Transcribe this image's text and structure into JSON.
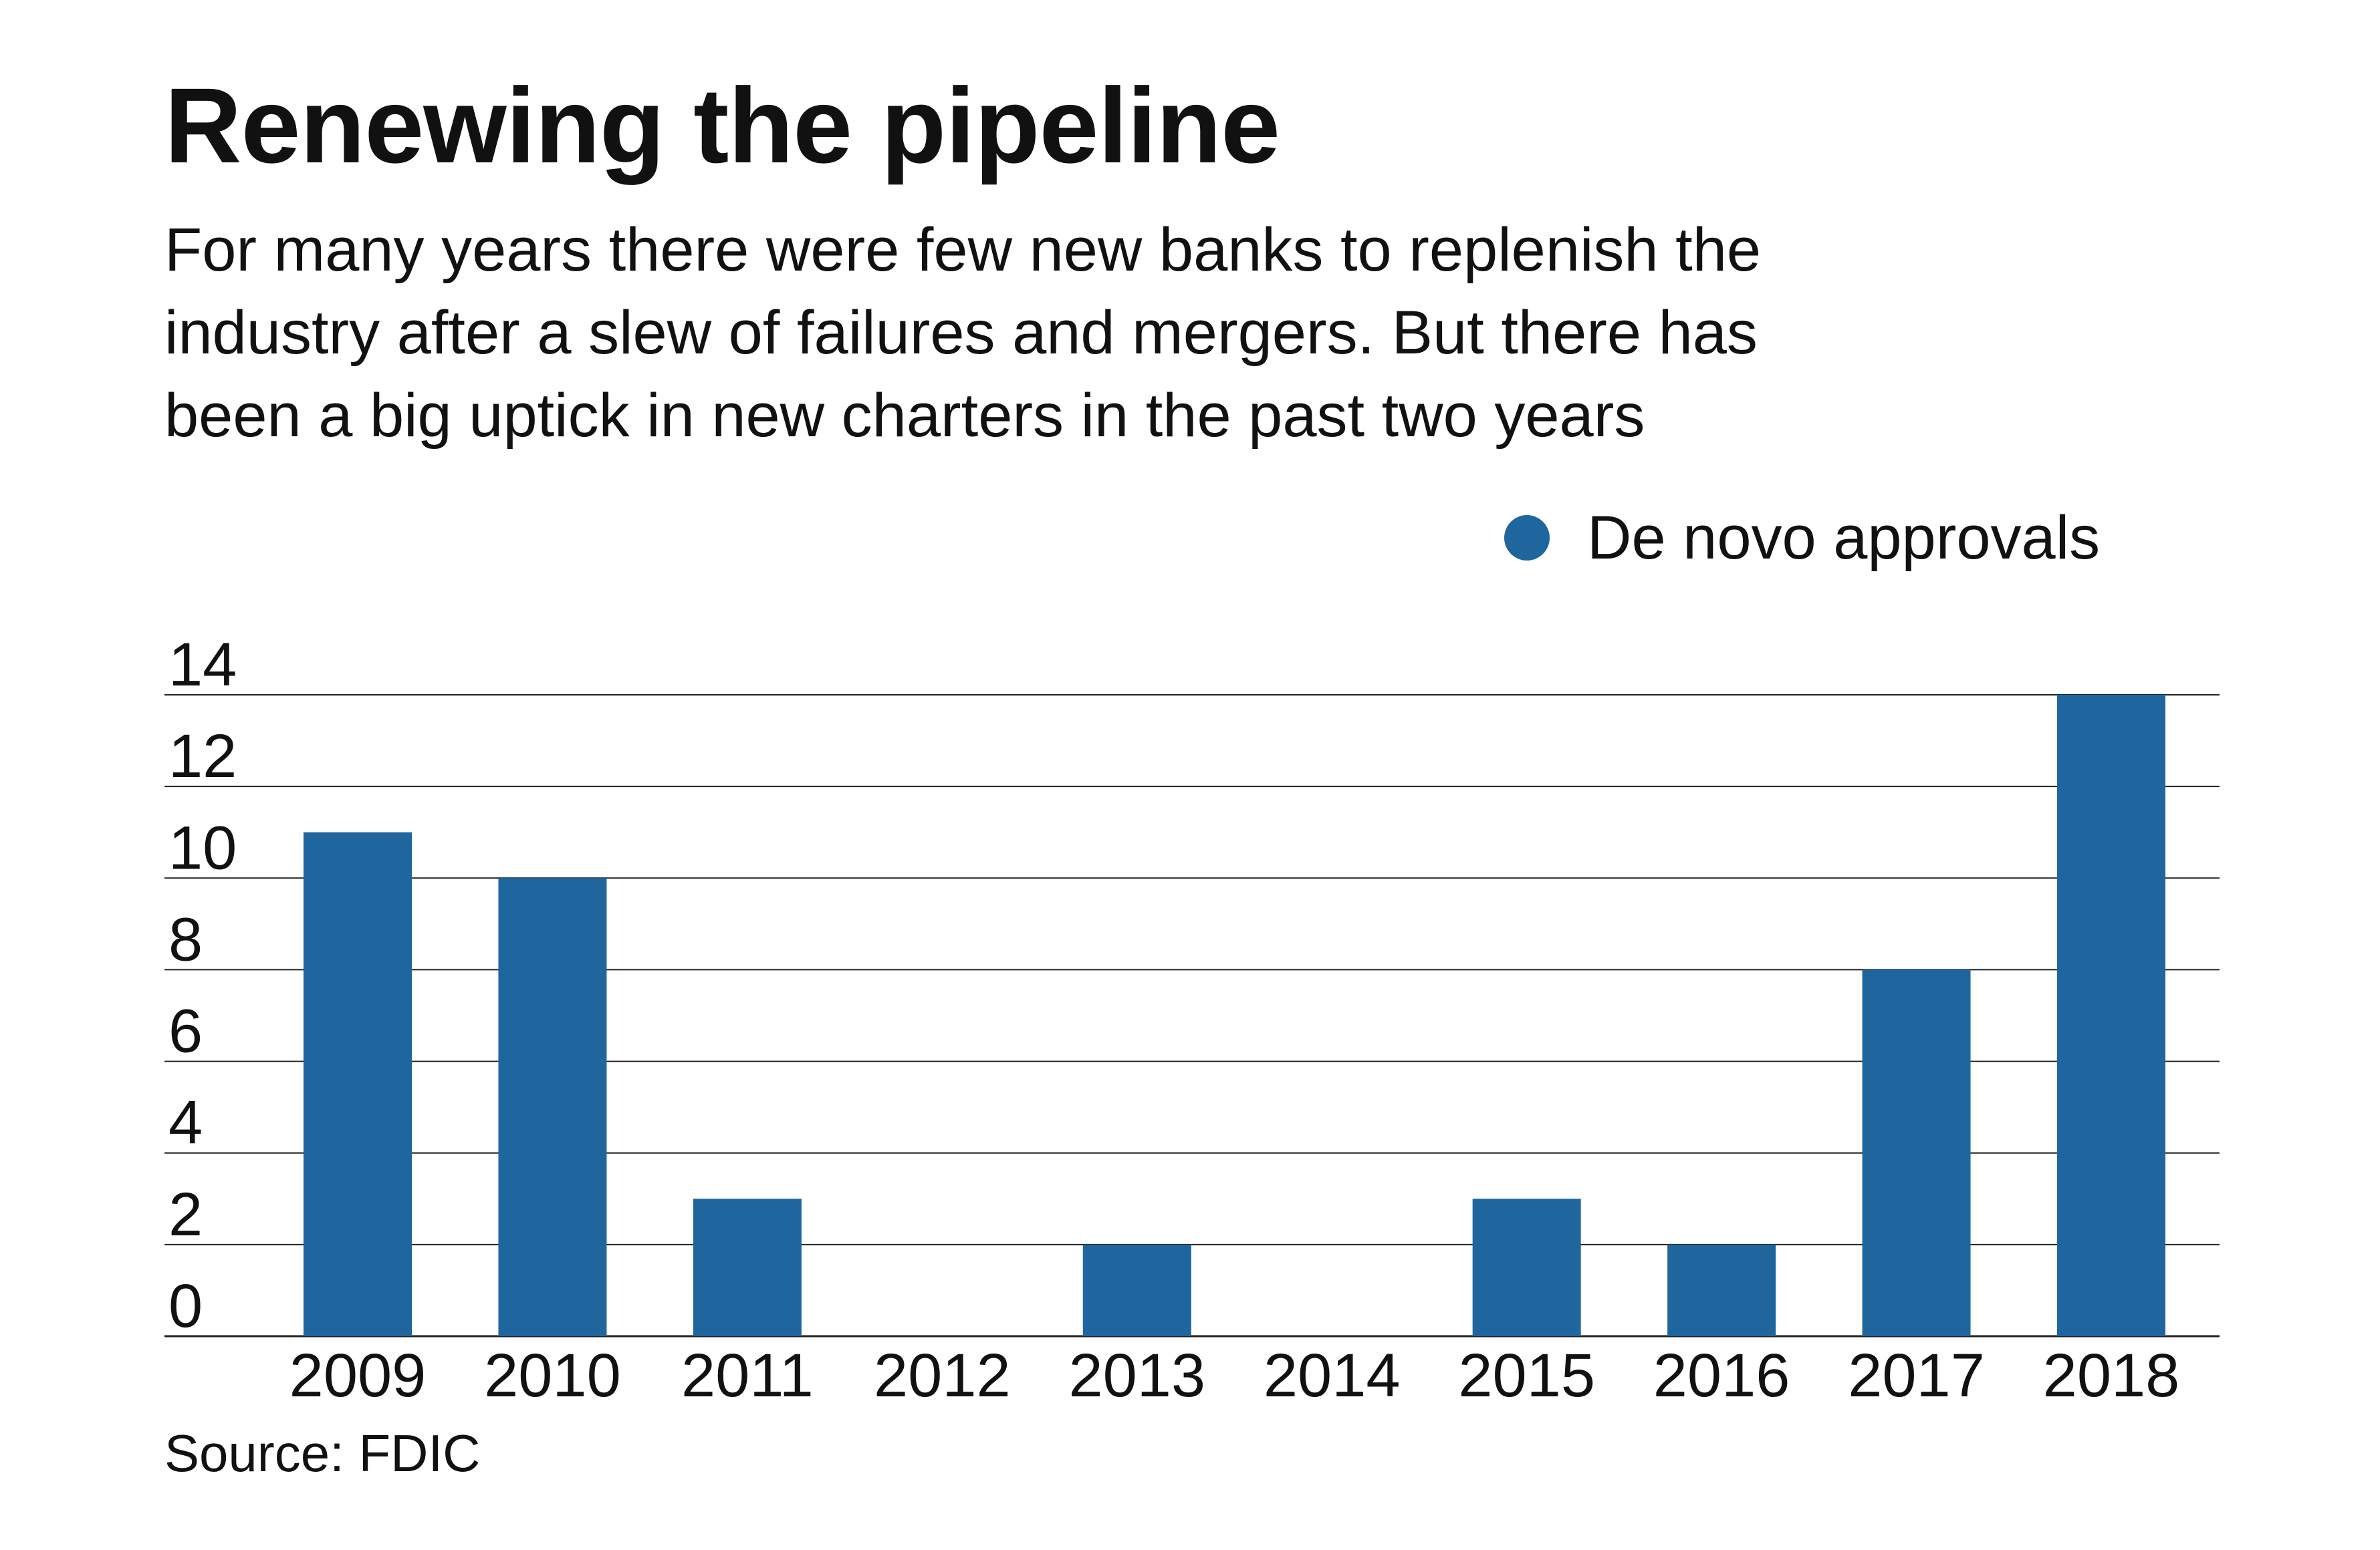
{
  "title": "Renewing the pipeline",
  "subtitle_lines": [
    "For many years there were few new banks to replenish the",
    "industry after a slew of failures and mergers. But there has",
    "been a big uptick in new charters in the past two years"
  ],
  "legend": {
    "label": "De novo approvals",
    "color": "#1f669f"
  },
  "source": "Source: FDIC",
  "chart_data": {
    "type": "bar",
    "categories": [
      "2009",
      "2010",
      "2011",
      "2012",
      "2013",
      "2014",
      "2015",
      "2016",
      "2017",
      "2018"
    ],
    "series": [
      {
        "name": "De novo approvals",
        "values": [
          11,
          10,
          3,
          0,
          2,
          0,
          3,
          2,
          8,
          14
        ],
        "color": "#1f669f"
      }
    ],
    "y_ticks": [
      "0",
      "2",
      "4",
      "6",
      "8",
      "10",
      "12",
      "14"
    ],
    "ylim": [
      0,
      14
    ],
    "grid": true,
    "legend_position": "top-right"
  }
}
